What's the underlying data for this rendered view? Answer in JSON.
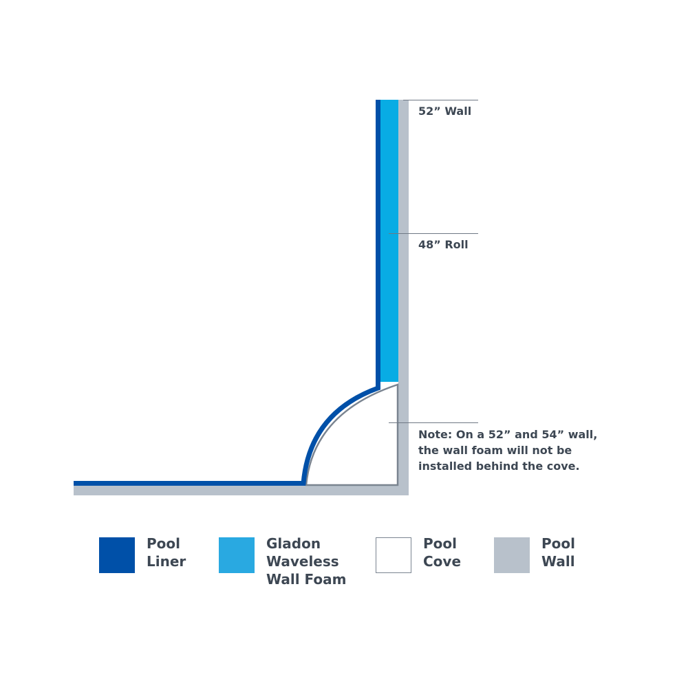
{
  "labels": {
    "wall_height": "52” Wall",
    "roll_height": "48” Roll",
    "note": "Note: On a 52” and 54” wall, the wall foam will not be installed behind the cove."
  },
  "legend": [
    {
      "label": "Pool\nLiner",
      "color": "#0050a8"
    },
    {
      "label": "Gladon\nWaveless\nWall Foam",
      "color": "#29a9e1"
    },
    {
      "label": "Pool\nCove",
      "color": "#ffffff"
    },
    {
      "label": "Pool\nWall",
      "color": "#b8c1cb"
    }
  ],
  "colors": {
    "liner": "#0050a8",
    "foam": "#08ace4",
    "wall": "#b8c1cb",
    "cove_outline": "#7a8490",
    "text": "#3d4753"
  }
}
